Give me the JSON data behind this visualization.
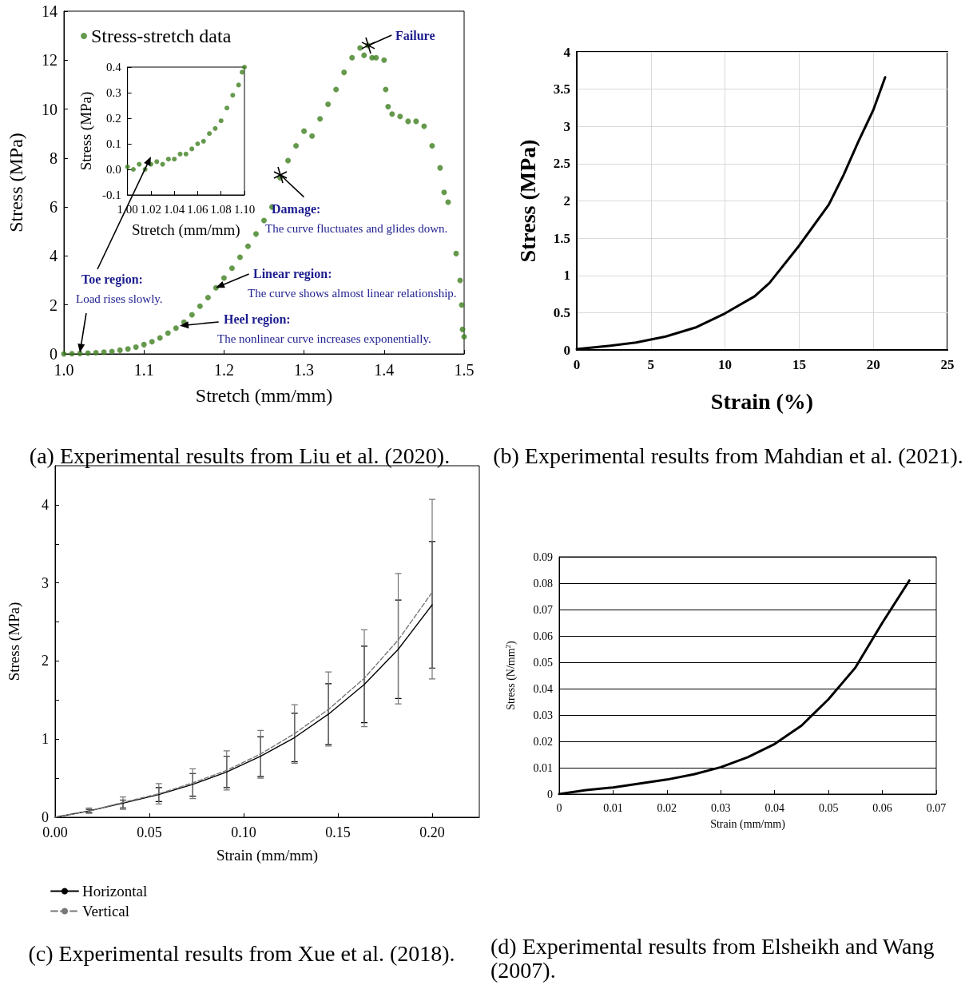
{
  "chart_data": [
    {
      "type": "scatter",
      "title": "(a) Experimental results from Liu et al. (2020).",
      "xlabel": "Stretch (mm/mm)",
      "ylabel": "Stress (MPa)",
      "legend": "top left",
      "marker": "circle",
      "x": [
        1.0,
        1.01,
        1.02,
        1.03,
        1.04,
        1.05,
        1.06,
        1.07,
        1.08,
        1.09,
        1.1,
        1.11,
        1.12,
        1.13,
        1.14,
        1.15,
        1.16,
        1.17,
        1.18,
        1.19,
        1.2,
        1.21,
        1.22,
        1.23,
        1.24,
        1.25,
        1.26,
        1.27,
        1.28,
        1.29,
        1.3,
        1.31,
        1.32,
        1.33,
        1.34,
        1.35,
        1.36,
        1.37,
        1.375,
        1.38,
        1.385,
        1.39,
        1.4,
        1.402,
        1.405,
        1.41,
        1.42,
        1.43,
        1.44,
        1.45,
        1.46,
        1.47,
        1.475,
        1.48,
        1.49,
        1.495,
        1.497,
        1.498,
        1.5
      ],
      "series": [
        {
          "name": "Stress-stretch data",
          "color": "#3f7f1f",
          "values": [
            0,
            0.01,
            0.02,
            0.03,
            0.05,
            0.07,
            0.1,
            0.15,
            0.2,
            0.28,
            0.38,
            0.5,
            0.65,
            0.85,
            1.05,
            1.3,
            1.6,
            1.95,
            2.3,
            2.7,
            3.1,
            3.5,
            3.95,
            4.4,
            4.9,
            5.45,
            6.0,
            7.2,
            7.9,
            8.5,
            9.1,
            8.9,
            9.6,
            10.2,
            10.8,
            11.5,
            12.1,
            12.5,
            12.2,
            12.6,
            12.1,
            12.1,
            12.0,
            10.8,
            10.1,
            9.8,
            9.7,
            9.5,
            9.5,
            9.3,
            8.5,
            7.6,
            6.6,
            6.2,
            4.1,
            3.0,
            2.0,
            1.0,
            0.7
          ]
        }
      ],
      "xlim": [
        1.0,
        1.5
      ],
      "xticks": [
        {
          "value": 1.0,
          "label": "1.0"
        },
        1.1,
        1.2,
        1.3,
        1.4,
        1.5
      ],
      "ylim": [
        0,
        14
      ],
      "yticks": [
        0,
        2,
        4,
        6,
        8,
        10,
        12,
        14
      ],
      "annotations": [
        {
          "text": "Failure",
          "x": 1.38,
          "y": 12.6
        },
        {
          "text": "Damage:",
          "x": 1.27,
          "y": 7.3
        },
        "The curve fluctuates and glides down.",
        {
          "text": "Linear region:",
          "x": 1.19,
          "y": 2.7
        },
        "The curve shows almost linear relationship.",
        {
          "text": "Heel region:",
          "x": 1.145,
          "y": 1.15
        },
        "The nonlinear curve increases exponentially.",
        "Toe region:",
        {
          "text": "Load rises slowly.",
          "x": 1.02,
          "y": 0.05
        }
      ]
    },
    {
      "type": "scatter",
      "xlabel": "Stretch (mm/mm)",
      "ylabel": "Stress (MPa)",
      "marker": "circle",
      "x": [
        1.0,
        1.005,
        1.01,
        1.015,
        1.02,
        1.025,
        1.03,
        1.035,
        1.04,
        1.045,
        1.05,
        1.055,
        1.06,
        1.065,
        1.07,
        1.075,
        1.08,
        1.085,
        1.09,
        1.095,
        1.098,
        1.1
      ],
      "series": [
        {
          "color": "#3f7f1f",
          "values": [
            0.01,
            0.0,
            0.02,
            0.0,
            0.02,
            0.03,
            0.02,
            0.04,
            0.04,
            0.06,
            0.06,
            0.08,
            0.1,
            0.11,
            0.14,
            0.16,
            0.19,
            0.24,
            0.29,
            0.33,
            0.38,
            0.4
          ]
        }
      ],
      "xlim": [
        1.0,
        1.1
      ],
      "xticks": [
        {
          "value": 1.0,
          "label": "1.00"
        },
        1.02,
        1.04,
        1.06,
        1.08,
        {
          "value": 1.1,
          "label": "1.10"
        }
      ],
      "ylim": [
        -0.1,
        0.4
      ],
      "yticks": [
        -0.1,
        {
          "value": 0,
          "label": "0.0"
        },
        0.1,
        0.2,
        0.3,
        0.4
      ]
    },
    {
      "type": "line",
      "title": "(b) Experimental results from Mahdian et al. (2021).",
      "xlabel": "Strain (%)",
      "ylabel": "Stress (MPa)",
      "grid": true,
      "marker": "none",
      "x": [
        0,
        2,
        4,
        6,
        8,
        10,
        12,
        13,
        15,
        17,
        18,
        19,
        20,
        20.8
      ],
      "series": [
        {
          "color": "#000000",
          "values": [
            0.01,
            0.05,
            0.1,
            0.18,
            0.3,
            0.49,
            0.72,
            0.9,
            1.4,
            1.95,
            2.35,
            2.8,
            3.22,
            3.66
          ]
        }
      ],
      "xlim": [
        0,
        25
      ],
      "xticks": [
        0,
        5,
        10,
        15,
        20,
        25
      ],
      "ylim": [
        0,
        4
      ],
      "yticks": [
        0,
        0.5,
        1,
        1.5,
        2,
        2.5,
        3,
        3.5,
        4
      ]
    },
    {
      "type": "line",
      "title": "(c) Experimental results from Xue et al. (2018).",
      "xlabel": "Strain (mm/mm)",
      "ylabel": "Stress (MPa)",
      "legend": "bottom left",
      "marker": "none",
      "x": [
        0,
        0.018,
        0.036,
        0.055,
        0.073,
        0.091,
        0.109,
        0.127,
        0.145,
        0.164,
        0.182,
        0.2
      ],
      "series": [
        {
          "name": "Horizontal",
          "color": "#000000",
          "line_style": "solid",
          "values": [
            0,
            0.08,
            0.18,
            0.29,
            0.42,
            0.58,
            0.78,
            1.02,
            1.32,
            1.7,
            2.15,
            2.72
          ],
          "errors": [
            null,
            [
              0.06,
              0.1
            ],
            [
              0.12,
              0.22
            ],
            [
              0.2,
              0.38
            ],
            [
              0.27,
              0.56
            ],
            [
              0.38,
              0.78
            ],
            [
              0.52,
              1.03
            ],
            [
              0.71,
              1.33
            ],
            [
              0.93,
              1.71
            ],
            [
              1.21,
              2.19
            ],
            [
              1.52,
              2.78
            ],
            [
              1.91,
              3.53
            ]
          ]
        },
        {
          "name": "Vertical",
          "color": "#777777",
          "line_style": "dashed",
          "values": [
            0,
            0.08,
            0.19,
            0.3,
            0.44,
            0.6,
            0.81,
            1.07,
            1.38,
            1.78,
            2.27,
            2.88
          ],
          "errors": [
            null,
            [
              0.05,
              0.12
            ],
            [
              0.1,
              0.26
            ],
            [
              0.17,
              0.43
            ],
            [
              0.24,
              0.62
            ],
            [
              0.35,
              0.85
            ],
            [
              0.5,
              1.11
            ],
            [
              0.69,
              1.44
            ],
            [
              0.91,
              1.86
            ],
            [
              1.16,
              2.4
            ],
            [
              1.45,
              3.12
            ],
            [
              1.77,
              4.07
            ]
          ]
        }
      ],
      "xlim": [
        0,
        0.225
      ],
      "xticks": [
        {
          "value": 0,
          "label": "0.00"
        },
        0.05,
        {
          "value": 0.1,
          "label": "0.10"
        },
        0.15,
        {
          "value": 0.2,
          "label": "0.20"
        }
      ],
      "ylim": [
        0,
        4.5
      ],
      "yticks": [
        0,
        {
          "value": 0.5,
          "label": null
        },
        1,
        {
          "value": 1.5,
          "label": null
        },
        2,
        {
          "value": 2.5,
          "label": null
        },
        3,
        {
          "value": 3.5,
          "label": null
        },
        4
      ]
    },
    {
      "type": "line",
      "title": "(d) Experimental results from Elsheikh and Wang (2007).",
      "xlabel": "Strain (mm/mm)",
      "ylabel": "Stress (N/mm$^{2}$)",
      "grid": "y",
      "marker": "none",
      "x": [
        0,
        0.005,
        0.01,
        0.015,
        0.02,
        0.025,
        0.03,
        0.035,
        0.04,
        0.045,
        0.05,
        0.055,
        0.06,
        0.065
      ],
      "series": [
        {
          "color": "#000000",
          "values": [
            0,
            0.0015,
            0.0025,
            0.004,
            0.0055,
            0.0075,
            0.0102,
            0.014,
            0.019,
            0.026,
            0.036,
            0.048,
            0.065,
            0.081
          ]
        }
      ],
      "xlim": [
        0,
        0.07
      ],
      "xticks": [
        0,
        0.01,
        0.02,
        0.03,
        0.04,
        0.05,
        0.06,
        0.07
      ],
      "ylim": [
        0,
        0.09
      ],
      "yticks": [
        0,
        0.01,
        0.02,
        0.03,
        0.04,
        0.05,
        0.06,
        0.07,
        0.08,
        0.09
      ]
    }
  ]
}
